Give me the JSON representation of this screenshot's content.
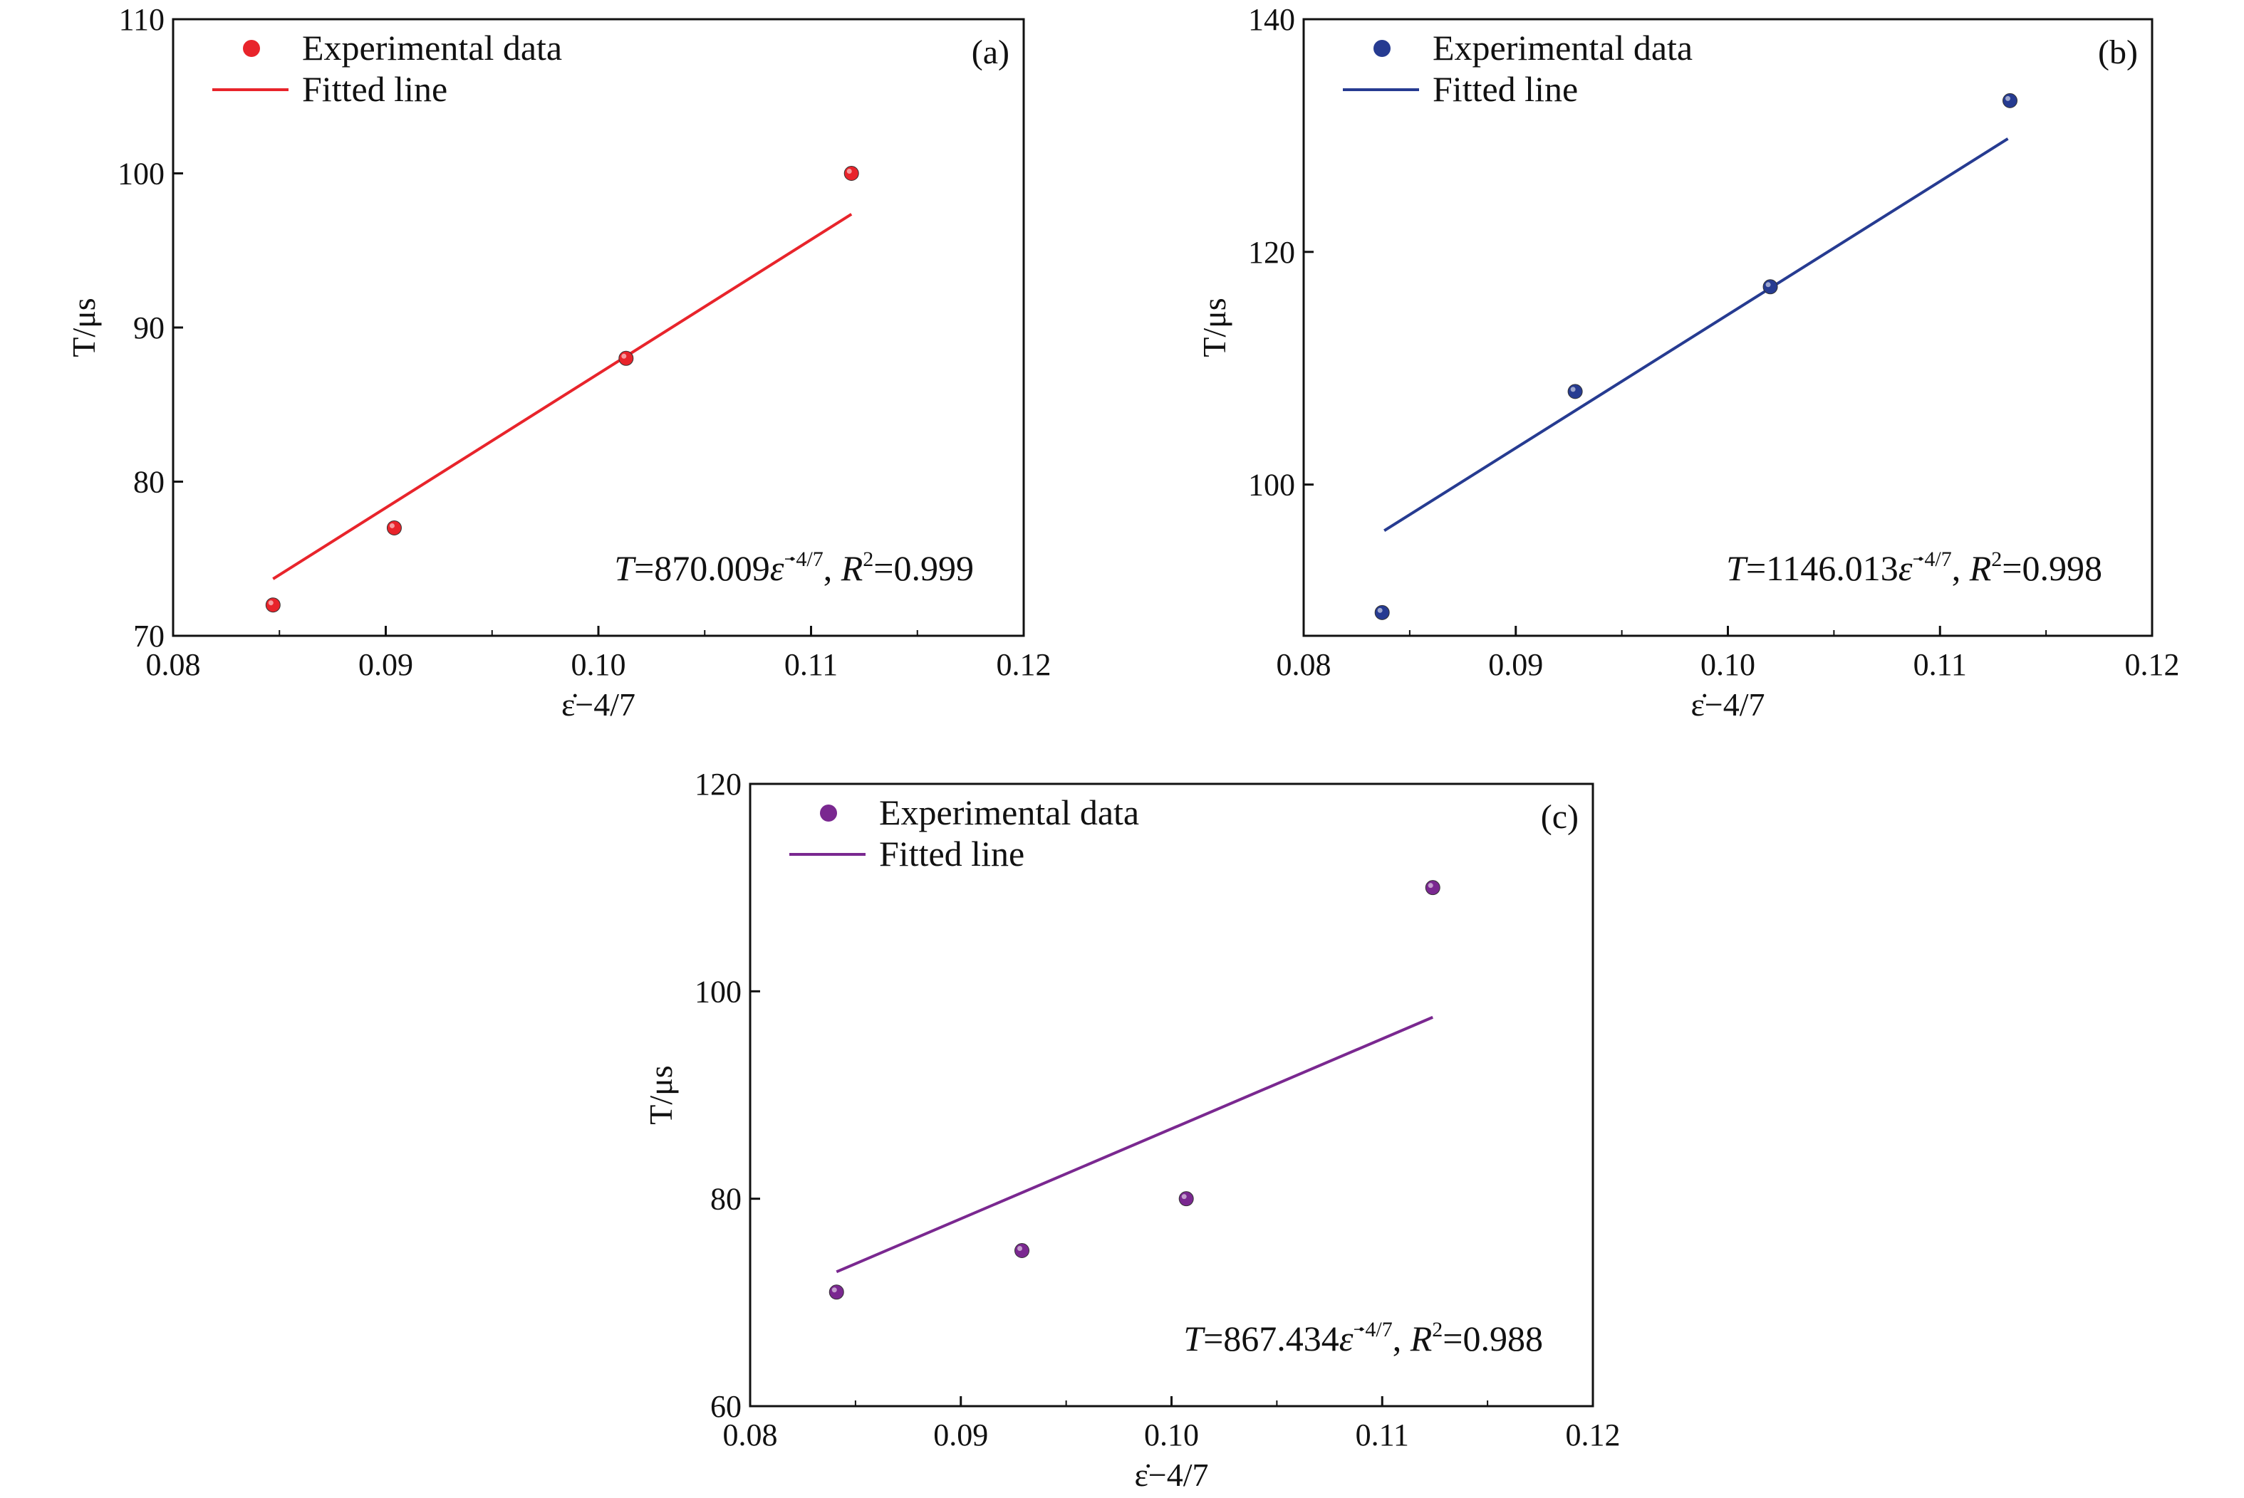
{
  "chart_data": [
    {
      "type": "scatter",
      "panel_label": "(a)",
      "color": "#e8242b",
      "xlabel": "ε̇−4/7",
      "ylabel": "T/μs",
      "xlim": [
        0.08,
        0.12
      ],
      "ylim": [
        70,
        110
      ],
      "x_ticks": [
        "0.08",
        "0.09",
        "0.10",
        "0.11",
        "0.12"
      ],
      "y_ticks": [
        "70",
        "80",
        "90",
        "100",
        "110"
      ],
      "legend": {
        "placement": "top-left",
        "scatter_label": "Experimental data",
        "line_label": "Fitted line"
      },
      "annotation": {
        "lhs": "T",
        "eq": "=870.009",
        "sym": "ε̇",
        "exp": "−4/7",
        "sep": ", ",
        "r": "R",
        "r_exp": "2",
        "r_val": "=0.999"
      },
      "grid": false,
      "points": [
        {
          "x": 0.0847,
          "y": 72
        },
        {
          "x": 0.0904,
          "y": 77
        },
        {
          "x": 0.1013,
          "y": 88
        },
        {
          "x": 0.1119,
          "y": 100
        }
      ],
      "fit": {
        "slope": 870.009,
        "intercept": 0,
        "x_range": [
          0.0847,
          0.1119
        ]
      }
    },
    {
      "type": "scatter",
      "panel_label": "(b)",
      "color": "#263b91",
      "xlabel": "ε̇−4/7",
      "ylabel": "T/μs",
      "xlim": [
        0.08,
        0.12
      ],
      "ylim": [
        87,
        140
      ],
      "y_ticks_values": [
        100,
        120,
        140
      ],
      "x_ticks": [
        "0.08",
        "0.09",
        "0.10",
        "0.11",
        "0.12"
      ],
      "y_ticks": [
        "100",
        "120",
        "140"
      ],
      "legend": {
        "placement": "top-left",
        "scatter_label": "Experimental data",
        "line_label": "Fitted line"
      },
      "annotation": {
        "lhs": "T",
        "eq": "=1146.013",
        "sym": "ε̇",
        "exp": "−4/7",
        "sep": ", ",
        "r": "R",
        "r_exp": "2",
        "r_val": "=0.998"
      },
      "grid": false,
      "points": [
        {
          "x": 0.0837,
          "y": 89
        },
        {
          "x": 0.0928,
          "y": 108
        },
        {
          "x": 0.102,
          "y": 117
        },
        {
          "x": 0.1133,
          "y": 133
        }
      ],
      "fit": {
        "slope": 1146.013,
        "intercept": 0,
        "x_range": [
          0.0838,
          0.1132
        ]
      }
    },
    {
      "type": "scatter",
      "panel_label": "(c)",
      "color": "#7a2890",
      "xlabel": "ε̇−4/7",
      "ylabel": "T/μs",
      "xlim": [
        0.08,
        0.12
      ],
      "ylim": [
        60,
        120
      ],
      "y_ticks_values": [
        60,
        80,
        100,
        120
      ],
      "x_ticks": [
        "0.08",
        "0.09",
        "0.10",
        "0.11",
        "0.12"
      ],
      "y_ticks": [
        "60",
        "80",
        "100",
        "120"
      ],
      "legend": {
        "placement": "top-left",
        "scatter_label": "Experimental data",
        "line_label": "Fitted line"
      },
      "annotation": {
        "lhs": "T",
        "eq": "=867.434",
        "sym": "ε̇",
        "exp": "−4/7",
        "sep": ", ",
        "r": "R",
        "r_exp": "2",
        "r_val": "=0.988"
      },
      "grid": false,
      "points": [
        {
          "x": 0.0841,
          "y": 71
        },
        {
          "x": 0.0929,
          "y": 75
        },
        {
          "x": 0.1007,
          "y": 80
        },
        {
          "x": 0.1124,
          "y": 110
        }
      ],
      "fit": {
        "slope": 867.434,
        "intercept": 0,
        "x_range": [
          0.0841,
          0.1124
        ]
      }
    }
  ]
}
